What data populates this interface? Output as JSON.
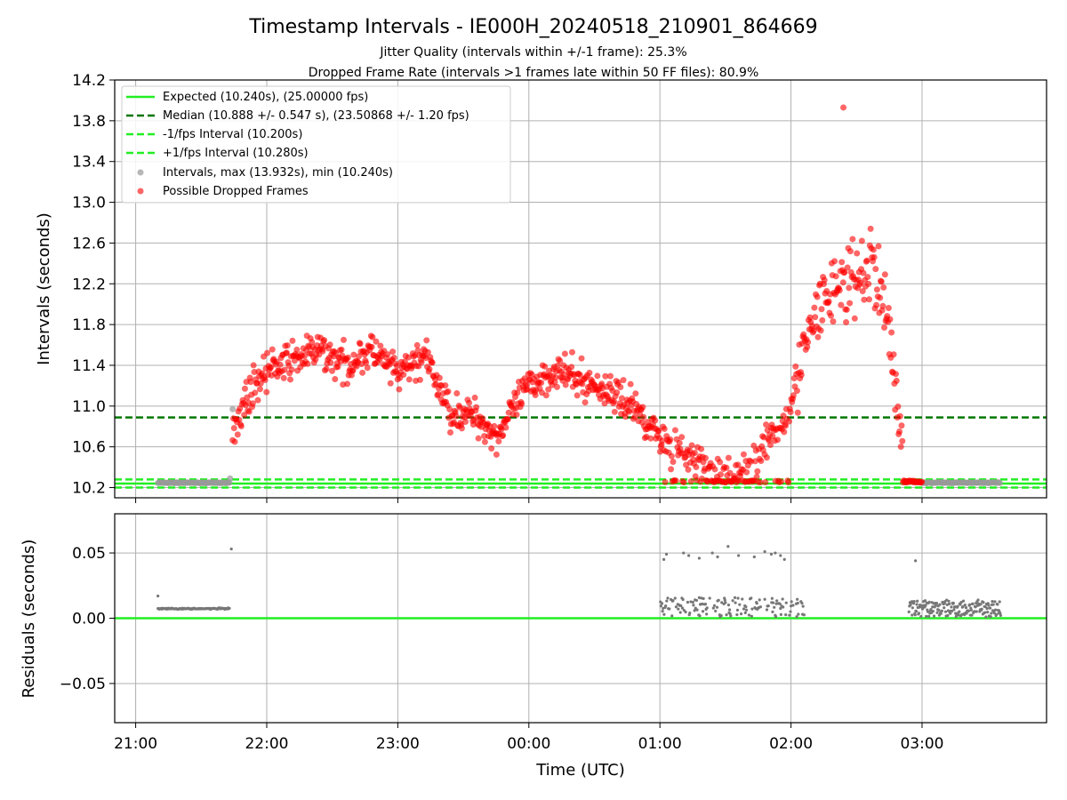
{
  "chart_data": [
    {
      "type": "scatter",
      "title": "Timestamp Intervals - IE000H_20240518_210901_864669",
      "subtitle_lines": [
        "Jitter Quality (intervals within +/-1 frame): 25.3%",
        "Dropped Frame Rate (intervals >1 frames late within 50 FF files): 80.9%"
      ],
      "xlabel": "",
      "ylabel": "Intervals (seconds)",
      "x_unit": "hours since 21:00 UTC",
      "xlim": [
        -0.16,
        6.95
      ],
      "ylim": [
        10.1,
        14.2
      ],
      "yticks": [
        10.2,
        10.6,
        11.0,
        11.4,
        11.8,
        12.2,
        12.6,
        13.0,
        13.4,
        13.8,
        14.2
      ],
      "ytick_labels": [
        "10.2",
        "10.6",
        "11.0",
        "11.4",
        "11.8",
        "12.2",
        "12.6",
        "13.0",
        "13.4",
        "13.8",
        "14.2"
      ],
      "grid": true,
      "legend_position": "upper-left",
      "reference_lines": [
        {
          "name": "Expected (10.240s), (25.00000 fps)",
          "y": 10.24,
          "style": "solid",
          "color": "#22ee22"
        },
        {
          "name": "Median (10.888 +/- 0.547 s), (23.50868 +/- 1.20 fps)",
          "y": 10.888,
          "style": "dashed",
          "color": "#007700"
        },
        {
          "name": "-1/fps Interval (10.200s)",
          "y": 10.2,
          "style": "dashed",
          "color": "#22ee22"
        },
        {
          "name": "+1/fps Interval (10.280s)",
          "y": 10.28,
          "style": "dashed",
          "color": "#22ee22"
        }
      ],
      "series": [
        {
          "name": "Intervals, max (13.932s), min (10.240s)",
          "color": "#999999",
          "segments": [
            {
              "x_start": 0.17,
              "x_end": 0.72,
              "y": 10.247
            },
            {
              "x_start": 6.0,
              "x_end": 6.6,
              "y": 10.248
            }
          ],
          "points": [
            [
              0.72,
              10.29
            ],
            [
              0.74,
              10.97
            ]
          ]
        },
        {
          "name": "Possible Dropped Frames",
          "color": "#ff0000",
          "profile": [
            [
              0.74,
              10.8
            ],
            [
              0.9,
              11.2
            ],
            [
              1.0,
              11.35
            ],
            [
              1.2,
              11.45
            ],
            [
              1.4,
              11.55
            ],
            [
              1.6,
              11.4
            ],
            [
              1.8,
              11.55
            ],
            [
              2.0,
              11.3
            ],
            [
              2.2,
              11.5
            ],
            [
              2.4,
              10.95
            ],
            [
              2.6,
              10.9
            ],
            [
              2.75,
              10.7
            ],
            [
              3.0,
              11.2
            ],
            [
              3.2,
              11.35
            ],
            [
              3.4,
              11.25
            ],
            [
              3.6,
              11.15
            ],
            [
              3.8,
              11.0
            ],
            [
              4.0,
              10.7
            ],
            [
              4.2,
              10.5
            ],
            [
              4.4,
              10.35
            ],
            [
              4.65,
              10.35
            ],
            [
              4.8,
              10.6
            ],
            [
              4.95,
              10.85
            ],
            [
              5.05,
              11.3
            ],
            [
              5.2,
              11.9
            ],
            [
              5.35,
              12.2
            ],
            [
              5.5,
              12.2
            ],
            [
              5.62,
              12.4
            ],
            [
              5.75,
              11.8
            ],
            [
              5.82,
              10.9
            ],
            [
              5.88,
              10.4
            ],
            [
              6.0,
              10.25
            ]
          ],
          "max_point": [
            5.4,
            13.93
          ]
        }
      ]
    },
    {
      "type": "scatter",
      "xlabel": "Time (UTC)",
      "ylabel": "Residuals (seconds)",
      "xlim": [
        -0.16,
        6.95
      ],
      "ylim": [
        -0.08,
        0.08
      ],
      "yticks": [
        0.05,
        0.0,
        -0.05
      ],
      "ytick_labels": [
        "0.05",
        "0.00",
        "−0.05"
      ],
      "xticks": [
        0,
        1,
        2,
        3,
        4,
        5,
        6
      ],
      "xtick_labels": [
        "21:00",
        "22:00",
        "23:00",
        "00:00",
        "01:00",
        "02:00",
        "03:00"
      ],
      "grid": true,
      "reference_lines": [
        {
          "y": 0.0,
          "style": "solid",
          "color": "#22ee22"
        }
      ],
      "series": [
        {
          "color": "#777777",
          "segments": [
            {
              "x_start": 0.17,
              "x_end": 0.72,
              "y": 0.0073
            }
          ],
          "points": [
            [
              0.17,
              0.017
            ],
            [
              0.73,
              0.053
            ],
            [
              4.03,
              0.045
            ],
            [
              4.05,
              0.049
            ],
            [
              4.18,
              0.05
            ],
            [
              4.22,
              0.048
            ],
            [
              4.3,
              0.046
            ],
            [
              4.4,
              0.05
            ],
            [
              4.44,
              0.047
            ],
            [
              4.52,
              0.055
            ],
            [
              4.6,
              0.048
            ],
            [
              4.72,
              0.047
            ],
            [
              4.8,
              0.051
            ],
            [
              4.85,
              0.049
            ],
            [
              4.88,
              0.05
            ],
            [
              4.92,
              0.048
            ],
            [
              4.95,
              0.045
            ],
            [
              5.95,
              0.044
            ]
          ],
          "clusters": [
            {
              "x_start": 4.0,
              "x_end": 5.1,
              "y_min": 0.001,
              "y_max": 0.016
            },
            {
              "x_start": 5.9,
              "x_end": 6.6,
              "y_min": 0.001,
              "y_max": 0.014
            }
          ]
        }
      ]
    }
  ],
  "colors": {
    "expected": "#22ee22",
    "median": "#007700",
    "dropped": "#ff0000",
    "intervals": "#999999",
    "residuals": "#777777",
    "grid": "#b0b0b0"
  }
}
